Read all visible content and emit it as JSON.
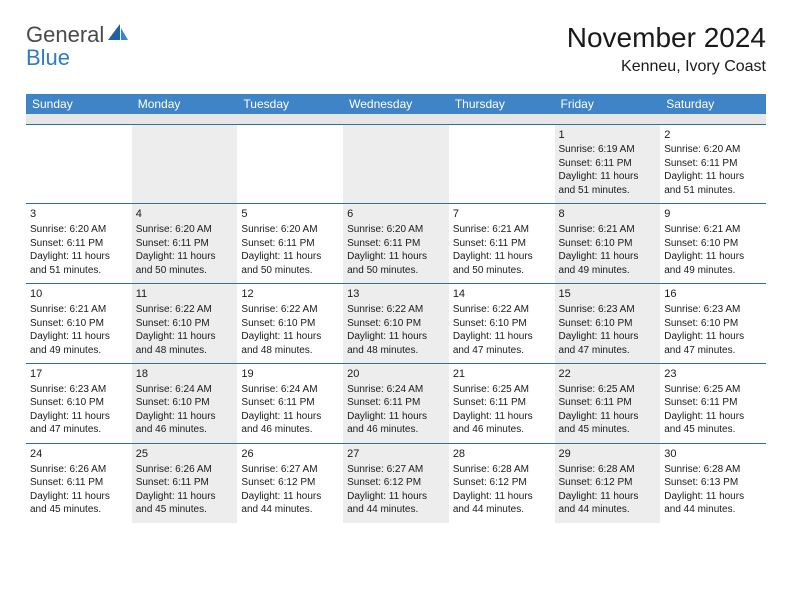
{
  "logo": {
    "general": "General",
    "blue": "Blue"
  },
  "title": "November 2024",
  "location": "Kenneu, Ivory Coast",
  "colors": {
    "header_bg": "#3e84c6",
    "header_text": "#ffffff",
    "row_border": "#2f6fa8",
    "shaded": "#ededed",
    "spacer": "#e6e6e6",
    "logo_blue": "#2f7bc4",
    "logo_gray": "#4a4a4a"
  },
  "weekdays": [
    "Sunday",
    "Monday",
    "Tuesday",
    "Wednesday",
    "Thursday",
    "Friday",
    "Saturday"
  ],
  "weeks": [
    [
      {
        "n": "",
        "shaded": false
      },
      {
        "n": "",
        "shaded": true
      },
      {
        "n": "",
        "shaded": false
      },
      {
        "n": "",
        "shaded": true
      },
      {
        "n": "",
        "shaded": false
      },
      {
        "n": "1",
        "shaded": true,
        "sr": "Sunrise: 6:19 AM",
        "ss": "Sunset: 6:11 PM",
        "dl1": "Daylight: 11 hours",
        "dl2": "and 51 minutes."
      },
      {
        "n": "2",
        "shaded": false,
        "sr": "Sunrise: 6:20 AM",
        "ss": "Sunset: 6:11 PM",
        "dl1": "Daylight: 11 hours",
        "dl2": "and 51 minutes."
      }
    ],
    [
      {
        "n": "3",
        "shaded": false,
        "sr": "Sunrise: 6:20 AM",
        "ss": "Sunset: 6:11 PM",
        "dl1": "Daylight: 11 hours",
        "dl2": "and 51 minutes."
      },
      {
        "n": "4",
        "shaded": true,
        "sr": "Sunrise: 6:20 AM",
        "ss": "Sunset: 6:11 PM",
        "dl1": "Daylight: 11 hours",
        "dl2": "and 50 minutes."
      },
      {
        "n": "5",
        "shaded": false,
        "sr": "Sunrise: 6:20 AM",
        "ss": "Sunset: 6:11 PM",
        "dl1": "Daylight: 11 hours",
        "dl2": "and 50 minutes."
      },
      {
        "n": "6",
        "shaded": true,
        "sr": "Sunrise: 6:20 AM",
        "ss": "Sunset: 6:11 PM",
        "dl1": "Daylight: 11 hours",
        "dl2": "and 50 minutes."
      },
      {
        "n": "7",
        "shaded": false,
        "sr": "Sunrise: 6:21 AM",
        "ss": "Sunset: 6:11 PM",
        "dl1": "Daylight: 11 hours",
        "dl2": "and 50 minutes."
      },
      {
        "n": "8",
        "shaded": true,
        "sr": "Sunrise: 6:21 AM",
        "ss": "Sunset: 6:10 PM",
        "dl1": "Daylight: 11 hours",
        "dl2": "and 49 minutes."
      },
      {
        "n": "9",
        "shaded": false,
        "sr": "Sunrise: 6:21 AM",
        "ss": "Sunset: 6:10 PM",
        "dl1": "Daylight: 11 hours",
        "dl2": "and 49 minutes."
      }
    ],
    [
      {
        "n": "10",
        "shaded": false,
        "sr": "Sunrise: 6:21 AM",
        "ss": "Sunset: 6:10 PM",
        "dl1": "Daylight: 11 hours",
        "dl2": "and 49 minutes."
      },
      {
        "n": "11",
        "shaded": true,
        "sr": "Sunrise: 6:22 AM",
        "ss": "Sunset: 6:10 PM",
        "dl1": "Daylight: 11 hours",
        "dl2": "and 48 minutes."
      },
      {
        "n": "12",
        "shaded": false,
        "sr": "Sunrise: 6:22 AM",
        "ss": "Sunset: 6:10 PM",
        "dl1": "Daylight: 11 hours",
        "dl2": "and 48 minutes."
      },
      {
        "n": "13",
        "shaded": true,
        "sr": "Sunrise: 6:22 AM",
        "ss": "Sunset: 6:10 PM",
        "dl1": "Daylight: 11 hours",
        "dl2": "and 48 minutes."
      },
      {
        "n": "14",
        "shaded": false,
        "sr": "Sunrise: 6:22 AM",
        "ss": "Sunset: 6:10 PM",
        "dl1": "Daylight: 11 hours",
        "dl2": "and 47 minutes."
      },
      {
        "n": "15",
        "shaded": true,
        "sr": "Sunrise: 6:23 AM",
        "ss": "Sunset: 6:10 PM",
        "dl1": "Daylight: 11 hours",
        "dl2": "and 47 minutes."
      },
      {
        "n": "16",
        "shaded": false,
        "sr": "Sunrise: 6:23 AM",
        "ss": "Sunset: 6:10 PM",
        "dl1": "Daylight: 11 hours",
        "dl2": "and 47 minutes."
      }
    ],
    [
      {
        "n": "17",
        "shaded": false,
        "sr": "Sunrise: 6:23 AM",
        "ss": "Sunset: 6:10 PM",
        "dl1": "Daylight: 11 hours",
        "dl2": "and 47 minutes."
      },
      {
        "n": "18",
        "shaded": true,
        "sr": "Sunrise: 6:24 AM",
        "ss": "Sunset: 6:10 PM",
        "dl1": "Daylight: 11 hours",
        "dl2": "and 46 minutes."
      },
      {
        "n": "19",
        "shaded": false,
        "sr": "Sunrise: 6:24 AM",
        "ss": "Sunset: 6:11 PM",
        "dl1": "Daylight: 11 hours",
        "dl2": "and 46 minutes."
      },
      {
        "n": "20",
        "shaded": true,
        "sr": "Sunrise: 6:24 AM",
        "ss": "Sunset: 6:11 PM",
        "dl1": "Daylight: 11 hours",
        "dl2": "and 46 minutes."
      },
      {
        "n": "21",
        "shaded": false,
        "sr": "Sunrise: 6:25 AM",
        "ss": "Sunset: 6:11 PM",
        "dl1": "Daylight: 11 hours",
        "dl2": "and 46 minutes."
      },
      {
        "n": "22",
        "shaded": true,
        "sr": "Sunrise: 6:25 AM",
        "ss": "Sunset: 6:11 PM",
        "dl1": "Daylight: 11 hours",
        "dl2": "and 45 minutes."
      },
      {
        "n": "23",
        "shaded": false,
        "sr": "Sunrise: 6:25 AM",
        "ss": "Sunset: 6:11 PM",
        "dl1": "Daylight: 11 hours",
        "dl2": "and 45 minutes."
      }
    ],
    [
      {
        "n": "24",
        "shaded": false,
        "sr": "Sunrise: 6:26 AM",
        "ss": "Sunset: 6:11 PM",
        "dl1": "Daylight: 11 hours",
        "dl2": "and 45 minutes."
      },
      {
        "n": "25",
        "shaded": true,
        "sr": "Sunrise: 6:26 AM",
        "ss": "Sunset: 6:11 PM",
        "dl1": "Daylight: 11 hours",
        "dl2": "and 45 minutes."
      },
      {
        "n": "26",
        "shaded": false,
        "sr": "Sunrise: 6:27 AM",
        "ss": "Sunset: 6:12 PM",
        "dl1": "Daylight: 11 hours",
        "dl2": "and 44 minutes."
      },
      {
        "n": "27",
        "shaded": true,
        "sr": "Sunrise: 6:27 AM",
        "ss": "Sunset: 6:12 PM",
        "dl1": "Daylight: 11 hours",
        "dl2": "and 44 minutes."
      },
      {
        "n": "28",
        "shaded": false,
        "sr": "Sunrise: 6:28 AM",
        "ss": "Sunset: 6:12 PM",
        "dl1": "Daylight: 11 hours",
        "dl2": "and 44 minutes."
      },
      {
        "n": "29",
        "shaded": true,
        "sr": "Sunrise: 6:28 AM",
        "ss": "Sunset: 6:12 PM",
        "dl1": "Daylight: 11 hours",
        "dl2": "and 44 minutes."
      },
      {
        "n": "30",
        "shaded": false,
        "sr": "Sunrise: 6:28 AM",
        "ss": "Sunset: 6:13 PM",
        "dl1": "Daylight: 11 hours",
        "dl2": "and 44 minutes."
      }
    ]
  ]
}
